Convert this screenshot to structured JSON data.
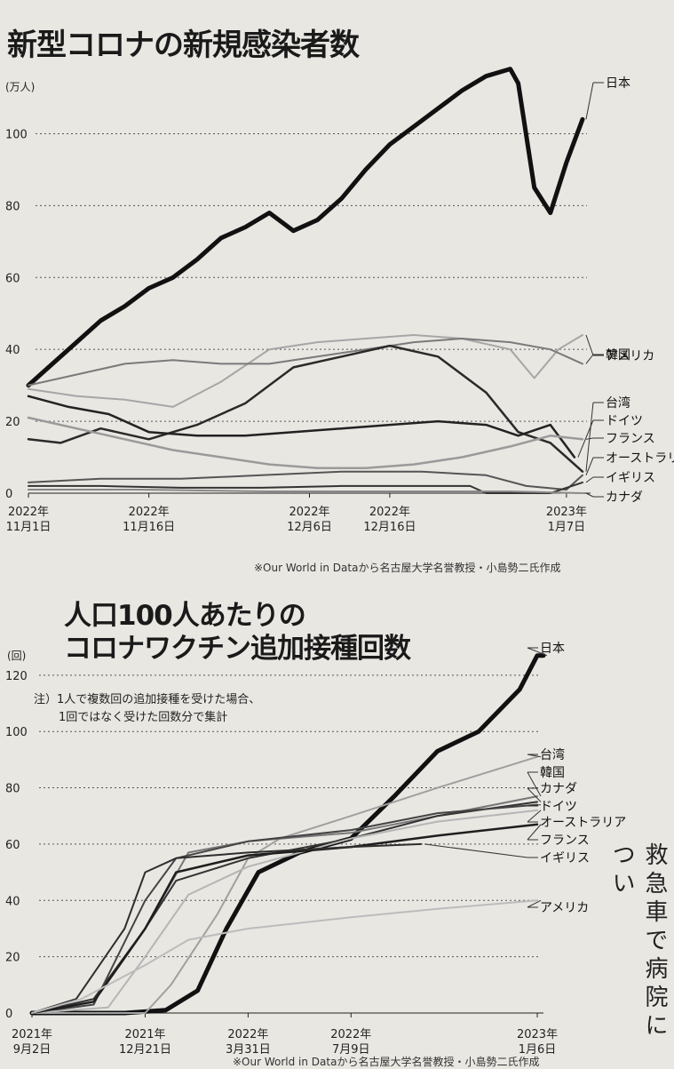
{
  "chart_data": [
    {
      "type": "line",
      "title": "新型コロナの新規感染者数",
      "unit_label": "(万人)",
      "ylim": [
        0,
        110
      ],
      "yticks": [
        0,
        20,
        40,
        60,
        80,
        100
      ],
      "x_tick_labels": [
        {
          "date": "2022-11-01",
          "lines": [
            "2022年",
            "11月1日"
          ]
        },
        {
          "date": "2022-11-16",
          "lines": [
            "2022年",
            "11月16日"
          ]
        },
        {
          "date": "2022-12-06",
          "lines": [
            "2022年",
            "12月6日"
          ]
        },
        {
          "date": "2022-12-16",
          "lines": [
            "2022年",
            "12月16日"
          ]
        },
        {
          "date": "2023-01-07",
          "lines": [
            "2023年",
            "1月7日"
          ]
        }
      ],
      "xlim": [
        "2022-11-01",
        "2023-01-10"
      ],
      "grid": "dotted",
      "source": "※Our World in Dataから名古屋大学名誉教授・小島勢二氏作成",
      "series": [
        {
          "name": "日本",
          "color": "#111111",
          "width": 5,
          "x": [
            "2022-11-01",
            "2022-11-04",
            "2022-11-07",
            "2022-11-10",
            "2022-11-13",
            "2022-11-16",
            "2022-11-19",
            "2022-11-22",
            "2022-11-25",
            "2022-11-28",
            "2022-12-01",
            "2022-12-04",
            "2022-12-07",
            "2022-12-10",
            "2022-12-13",
            "2022-12-16",
            "2022-12-19",
            "2022-12-22",
            "2022-12-25",
            "2022-12-28",
            "2022-12-31",
            "2023-01-01",
            "2023-01-03",
            "2023-01-05",
            "2023-01-07",
            "2023-01-09"
          ],
          "y": [
            30,
            36,
            42,
            48,
            52,
            57,
            60,
            65,
            71,
            74,
            78,
            73,
            76,
            82,
            90,
            97,
            102,
            107,
            112,
            116,
            118,
            114,
            85,
            78,
            92,
            104
          ]
        },
        {
          "name": "アメリカ",
          "color": "#a6a6a6",
          "width": 2,
          "x": [
            "2022-11-01",
            "2022-11-07",
            "2022-11-13",
            "2022-11-19",
            "2022-11-25",
            "2022-12-01",
            "2022-12-07",
            "2022-12-13",
            "2022-12-19",
            "2022-12-25",
            "2022-12-31",
            "2023-01-03",
            "2023-01-06",
            "2023-01-09"
          ],
          "y": [
            29,
            27,
            26,
            24,
            31,
            40,
            42,
            43,
            44,
            43,
            40,
            32,
            40,
            44
          ]
        },
        {
          "name": "韓国",
          "color": "#7a7a7a",
          "width": 2,
          "x": [
            "2022-11-01",
            "2022-11-07",
            "2022-11-13",
            "2022-11-19",
            "2022-11-25",
            "2022-12-01",
            "2022-12-07",
            "2022-12-13",
            "2022-12-19",
            "2022-12-25",
            "2022-12-31",
            "2023-01-05",
            "2023-01-09"
          ],
          "y": [
            30,
            33,
            36,
            37,
            36,
            36,
            38,
            40,
            42,
            43,
            42,
            40,
            36
          ]
        },
        {
          "name": "台湾",
          "color": "#2a2a2a",
          "width": 2.5,
          "x": [
            "2022-11-01",
            "2022-11-05",
            "2022-11-10",
            "2022-11-16",
            "2022-11-22",
            "2022-11-28",
            "2022-12-04",
            "2022-12-10",
            "2022-12-16",
            "2022-12-22",
            "2022-12-28",
            "2023-01-01",
            "2023-01-05",
            "2023-01-09"
          ],
          "y": [
            15,
            14,
            18,
            15,
            19,
            25,
            35,
            38,
            41,
            38,
            28,
            17,
            14,
            6
          ]
        },
        {
          "name": "ドイツ",
          "color": "#222222",
          "width": 2.5,
          "x": [
            "2022-11-01",
            "2022-11-06",
            "2022-11-11",
            "2022-11-16",
            "2022-11-22",
            "2022-11-28",
            "2022-12-04",
            "2022-12-10",
            "2022-12-16",
            "2022-12-22",
            "2022-12-28",
            "2023-01-01",
            "2023-01-05",
            "2023-01-08"
          ],
          "y": [
            27,
            24,
            22,
            17,
            16,
            16,
            17,
            18,
            19,
            20,
            19,
            16,
            19,
            10
          ]
        },
        {
          "name": "フランス",
          "color": "#9a9a9a",
          "width": 2.5,
          "x": [
            "2022-11-01",
            "2022-11-07",
            "2022-11-13",
            "2022-11-19",
            "2022-11-25",
            "2022-12-01",
            "2022-12-07",
            "2022-12-13",
            "2022-12-19",
            "2022-12-25",
            "2022-12-31",
            "2023-01-05",
            "2023-01-09"
          ],
          "y": [
            21,
            18,
            15,
            12,
            10,
            8,
            7,
            7,
            8,
            10,
            13,
            16,
            15
          ]
        },
        {
          "name": "オーストラリア",
          "color": "#555555",
          "width": 2,
          "x": [
            "2022-11-01",
            "2022-11-10",
            "2022-11-20",
            "2022-11-30",
            "2022-12-10",
            "2022-12-20",
            "2022-12-28",
            "2023-01-02",
            "2023-01-07",
            "2023-01-09"
          ],
          "y": [
            3,
            4,
            4,
            5,
            6,
            6,
            5,
            2,
            1,
            5
          ]
        },
        {
          "name": "イギリス",
          "color": "#333333",
          "width": 2,
          "x": [
            "2022-11-01",
            "2022-11-10",
            "2022-11-20",
            "2022-11-30",
            "2022-12-10",
            "2022-12-20",
            "2022-12-26",
            "2022-12-28",
            "2023-01-02",
            "2023-01-05",
            "2023-01-09"
          ],
          "y": [
            2,
            2,
            1.5,
            1.5,
            2,
            2,
            2,
            0,
            0,
            0,
            3
          ]
        },
        {
          "name": "カナダ",
          "color": "#888888",
          "width": 2,
          "x": [
            "2022-11-01",
            "2022-11-15",
            "2022-12-01",
            "2022-12-15",
            "2022-12-31",
            "2023-01-09"
          ],
          "y": [
            1,
            1,
            0.5,
            0.5,
            0.5,
            0
          ]
        }
      ],
      "legend_order": [
        "日本",
        "アメリカ",
        "韓国",
        "台湾",
        "ドイツ",
        "フランス",
        "オーストラリア",
        "イギリス",
        "カナダ"
      ]
    },
    {
      "type": "line",
      "title_lines": [
        "人口100人あたりの",
        "コロナワクチン追加接種回数"
      ],
      "unit_label": "(回)",
      "note_lines": [
        "注）1人で複数回の追加接種を受けた場合、",
        "1回ではなく受けた回数分で集計"
      ],
      "ylim": [
        0,
        125
      ],
      "yticks": [
        0,
        20,
        40,
        60,
        80,
        100,
        120
      ],
      "x_tick_labels": [
        {
          "date": "2021-09-02",
          "lines": [
            "2021年",
            "9月2日"
          ]
        },
        {
          "date": "2021-12-21",
          "lines": [
            "2021年",
            "12月21日"
          ]
        },
        {
          "date": "2022-03-31",
          "lines": [
            "2022年",
            "3月31日"
          ]
        },
        {
          "date": "2022-07-09",
          "lines": [
            "2022年",
            "7月9日"
          ]
        },
        {
          "date": "2023-01-06",
          "lines": [
            "2023年",
            "1月6日"
          ]
        }
      ],
      "xlim": [
        "2021-09-02",
        "2023-01-12"
      ],
      "grid": "dotted",
      "source": "※Our World in Dataから名古屋大学名誉教授・小島勢二氏作成",
      "series": [
        {
          "name": "日本",
          "color": "#111111",
          "width": 5,
          "x": [
            "2021-09-02",
            "2021-12-01",
            "2022-01-10",
            "2022-02-10",
            "2022-03-10",
            "2022-04-10",
            "2022-05-20",
            "2022-07-09",
            "2022-08-20",
            "2022-10-01",
            "2022-11-10",
            "2022-12-20",
            "2023-01-06",
            "2023-01-12"
          ],
          "y": [
            0,
            0,
            1,
            8,
            30,
            50,
            57,
            62,
            77,
            93,
            100,
            115,
            127,
            127
          ]
        },
        {
          "name": "台湾",
          "color": "#a0a0a0",
          "width": 2,
          "x": [
            "2021-09-02",
            "2021-12-21",
            "2022-01-15",
            "2022-03-01",
            "2022-03-31",
            "2022-05-01",
            "2022-07-09",
            "2022-10-01",
            "2023-01-06"
          ],
          "y": [
            0,
            0,
            10,
            35,
            55,
            62,
            70,
            80,
            91
          ]
        },
        {
          "name": "韓国",
          "color": "#777777",
          "width": 2,
          "x": [
            "2021-09-02",
            "2021-11-01",
            "2021-12-21",
            "2022-02-01",
            "2022-03-31",
            "2022-07-09",
            "2022-10-01",
            "2023-01-06"
          ],
          "y": [
            0,
            5,
            30,
            57,
            61,
            64,
            70,
            77
          ]
        },
        {
          "name": "カナダ",
          "color": "#333333",
          "width": 2,
          "x": [
            "2021-09-02",
            "2021-11-01",
            "2021-12-21",
            "2022-01-20",
            "2022-03-31",
            "2022-07-09",
            "2022-10-01",
            "2023-01-06"
          ],
          "y": [
            0,
            5,
            30,
            47,
            55,
            62,
            70,
            75
          ]
        },
        {
          "name": "ドイツ",
          "color": "#444444",
          "width": 2,
          "x": [
            "2021-09-02",
            "2021-11-01",
            "2021-12-21",
            "2022-01-20",
            "2022-03-31",
            "2022-07-09",
            "2022-10-01",
            "2023-01-06"
          ],
          "y": [
            0,
            3,
            40,
            55,
            61,
            65,
            71,
            74
          ]
        },
        {
          "name": "オーストラリア",
          "color": "#b5b5b5",
          "width": 2,
          "x": [
            "2021-09-02",
            "2021-11-15",
            "2021-12-21",
            "2022-02-01",
            "2022-03-31",
            "2022-07-09",
            "2022-10-01",
            "2023-01-06"
          ],
          "y": [
            0,
            2,
            20,
            42,
            52,
            62,
            68,
            72
          ]
        },
        {
          "name": "フランス",
          "color": "#1e1e1e",
          "width": 2.5,
          "x": [
            "2021-09-02",
            "2021-11-01",
            "2021-12-21",
            "2022-01-20",
            "2022-03-31",
            "2022-07-09",
            "2022-10-01",
            "2023-01-06"
          ],
          "y": [
            0,
            4,
            30,
            50,
            56,
            59,
            63,
            67
          ]
        },
        {
          "name": "イギリス",
          "color": "#2e2e2e",
          "width": 2,
          "x": [
            "2021-09-02",
            "2021-10-15",
            "2021-12-01",
            "2021-12-21",
            "2022-01-20",
            "2022-03-31",
            "2022-07-09",
            "2022-09-15"
          ],
          "y": [
            0,
            5,
            30,
            50,
            55,
            57,
            59,
            60
          ]
        },
        {
          "name": "アメリカ",
          "color": "#bcbcbc",
          "width": 2,
          "x": [
            "2021-09-02",
            "2021-10-20",
            "2021-12-21",
            "2022-02-01",
            "2022-03-31",
            "2022-07-09",
            "2022-10-01",
            "2023-01-06"
          ],
          "y": [
            0,
            5,
            17,
            26,
            30,
            34,
            37,
            40
          ]
        }
      ],
      "legend_order": [
        "日本",
        "台湾",
        "韓国",
        "カナダ",
        "ドイツ",
        "オーストラリア",
        "フランス",
        "イギリス",
        "アメリカ"
      ]
    }
  ],
  "sidebar_text": "救急車で病院につい"
}
